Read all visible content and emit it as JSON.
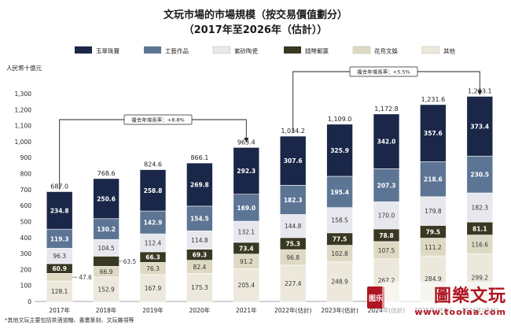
{
  "chart_data": {
    "type": "bar",
    "stacked": true,
    "title": "文玩市場的市場規模（按交易價值劃分）",
    "subtitle": "（2017年至2026年（估計））",
    "ylabel": "人民幣十億元",
    "ylim": [
      0,
      1300
    ],
    "yticks": [
      0,
      100,
      200,
      300,
      400,
      500,
      600,
      700,
      800,
      900,
      1000,
      1100,
      1200,
      1300
    ],
    "categories": [
      "2017年",
      "2018年",
      "2019年",
      "2020年",
      "2021年",
      "2022年(估計)",
      "2023年(估計)",
      "2024年(估計)",
      "2025年(估計)",
      "2026年(估計)"
    ],
    "series": [
      {
        "name": "其他",
        "color": "#ece8dc",
        "values": [
          128.1,
          152.9,
          167.9,
          175.3,
          205.4,
          227.4,
          248.9,
          267.2,
          284.9,
          299.2
        ]
      },
      {
        "name": "花鳥文娛",
        "color": "#ddd9c3",
        "values": [
          47.6,
          66.9,
          76.3,
          82.4,
          91.2,
          96.8,
          102.8,
          107.5,
          111.2,
          116.6
        ]
      },
      {
        "name": "錢幣郵票",
        "color": "#393822",
        "values": [
          60.9,
          63.5,
          66.3,
          69.3,
          73.4,
          75.3,
          77.5,
          78.8,
          79.5,
          81.1
        ]
      },
      {
        "name": "紫砂陶瓷",
        "color": "#e7e8ee",
        "values": [
          96.3,
          104.5,
          112.4,
          114.8,
          132.1,
          144.8,
          158.5,
          170.0,
          179.8,
          182.3
        ]
      },
      {
        "name": "工藝作品",
        "color": "#5d7594",
        "values": [
          119.3,
          130.2,
          142.9,
          154.5,
          169.0,
          182.3,
          195.4,
          207.3,
          218.6,
          230.5
        ]
      },
      {
        "name": "玉翠珠寶",
        "color": "#1a2748",
        "values": [
          234.8,
          250.6,
          258.8,
          269.8,
          292.3,
          307.6,
          325.9,
          342.0,
          357.6,
          373.4
        ]
      }
    ],
    "legend_order": [
      "玉翠珠寶",
      "工藝作品",
      "紫砂陶瓷",
      "錢幣郵票",
      "花鳥文娛",
      "其他"
    ],
    "legend_position": "top",
    "totals": [
      "687.0",
      "768.6",
      "824.6",
      "866.1",
      "963.4",
      "1,034.2",
      "1,109.0",
      "1,172.8",
      "1,231.6",
      "1,283.1"
    ],
    "annotations": [
      {
        "text": "複合年增長率：+8.8%",
        "from": 0,
        "to": 4
      },
      {
        "text": "複合年增長率：+5.5%",
        "from": 5,
        "to": 9
      }
    ],
    "grid": false
  },
  "footnote": "*其他文玩主要包括茶酒道糖、書畫篆刻、文玩雜項等",
  "watermark": {
    "text": "圖樂文玩",
    "seal": "图乐",
    "url": "www.toolaa.com"
  }
}
